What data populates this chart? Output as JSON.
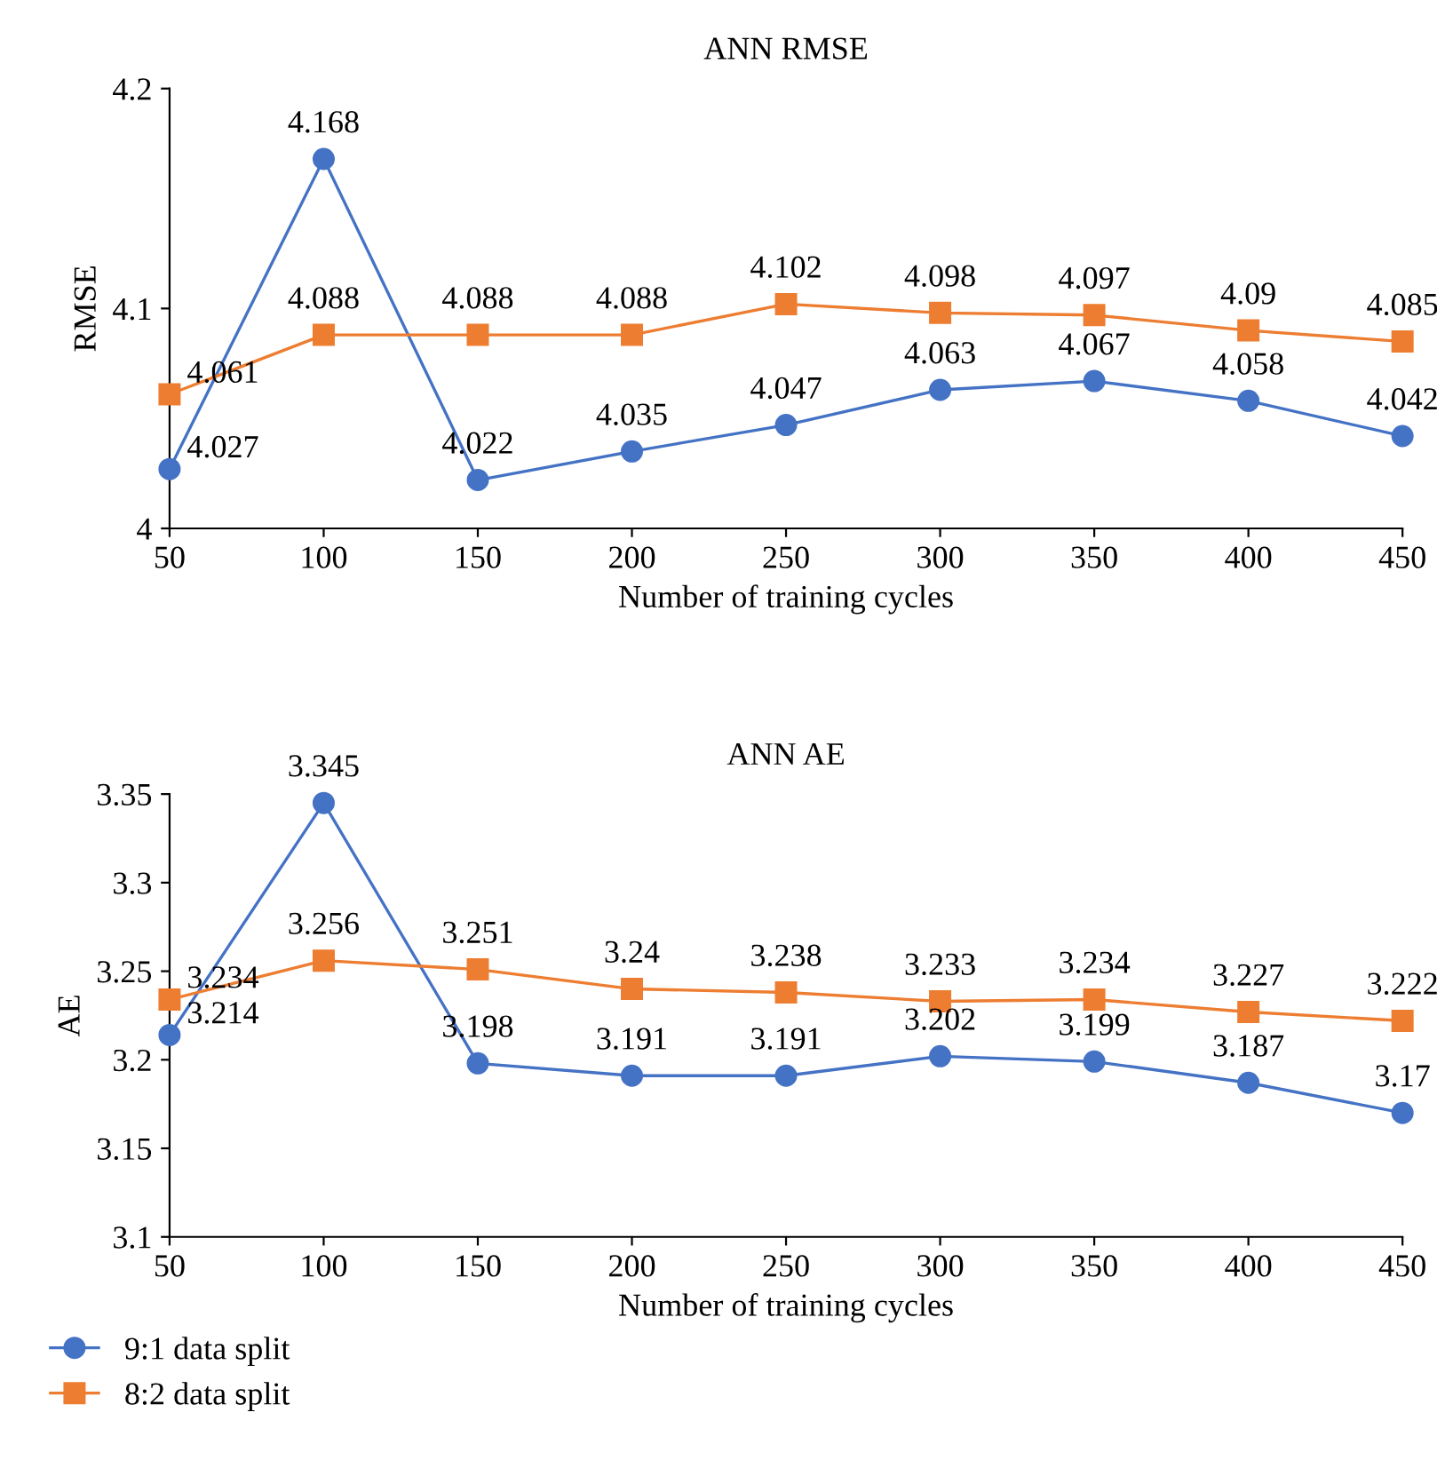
{
  "chart_data": [
    {
      "type": "line",
      "title": "ANN RMSE",
      "xlabel": "Number of training cycles",
      "ylabel": "RMSE",
      "x": [
        50,
        100,
        150,
        200,
        250,
        300,
        350,
        400,
        450
      ],
      "series": [
        {
          "color": "#4472c4",
          "marker": "circle",
          "values": [
            4.027,
            4.168,
            4.022,
            4.035,
            4.047,
            4.063,
            4.067,
            4.058,
            4.042
          ]
        },
        {
          "color": "#ed7d31",
          "marker": "square",
          "values": [
            4.061,
            4.088,
            4.088,
            4.088,
            4.102,
            4.098,
            4.097,
            4.09,
            4.085
          ]
        }
      ],
      "xlim": [
        50,
        450
      ],
      "xticks": [
        50,
        100,
        150,
        200,
        250,
        300,
        350,
        400,
        450
      ],
      "ylim": [
        4,
        4.2
      ],
      "yticks": [
        4,
        4.1,
        4.2
      ],
      "data_labels": true,
      "grid": false,
      "legend": false
    },
    {
      "type": "line",
      "title": "ANN AE",
      "xlabel": "Number of training cycles",
      "ylabel": "AE",
      "x": [
        50,
        100,
        150,
        200,
        250,
        300,
        350,
        400,
        450
      ],
      "series": [
        {
          "name": "9:1 data split",
          "color": "#4472c4",
          "marker": "circle",
          "values": [
            3.214,
            3.345,
            3.198,
            3.191,
            3.191,
            3.202,
            3.199,
            3.187,
            3.17
          ]
        },
        {
          "name": "8:2 data split",
          "color": "#ed7d31",
          "marker": "square",
          "values": [
            3.234,
            3.256,
            3.251,
            3.24,
            3.238,
            3.233,
            3.234,
            3.227,
            3.222
          ]
        }
      ],
      "xlim": [
        50,
        450
      ],
      "xticks": [
        50,
        100,
        150,
        200,
        250,
        300,
        350,
        400,
        450
      ],
      "ylim": [
        3.1,
        3.35
      ],
      "yticks": [
        3.1,
        3.15,
        3.2,
        3.25,
        3.3,
        3.35
      ],
      "data_labels": true,
      "grid": false,
      "legend": "bottom"
    }
  ]
}
